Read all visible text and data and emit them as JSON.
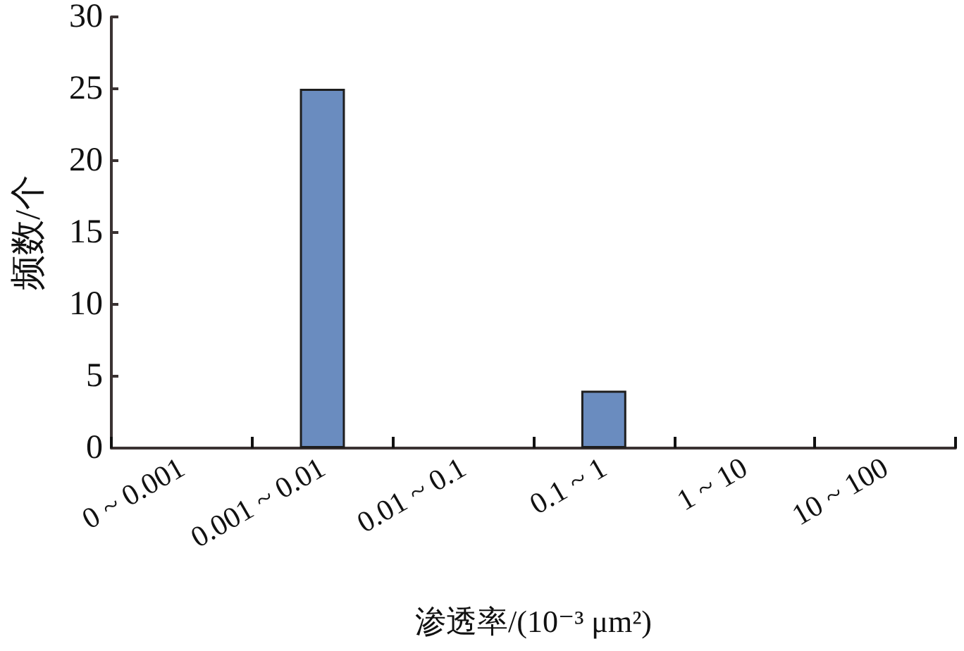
{
  "chart_data": {
    "type": "bar",
    "xlabel": "渗透率/(10⁻³ μm²)",
    "ylabel": "频数/个",
    "categories": [
      "0 ~ 0.001",
      "0.001 ~ 0.01",
      "0.01 ~ 0.1",
      "0.1 ~ 1",
      "1 ~ 10",
      "10 ~ 100"
    ],
    "values": [
      0,
      25,
      0,
      4,
      0,
      0
    ],
    "color": "#6a8cbf",
    "ylim": [
      0,
      30
    ],
    "yticks": [
      0,
      5,
      10,
      15,
      20,
      25,
      30
    ]
  }
}
